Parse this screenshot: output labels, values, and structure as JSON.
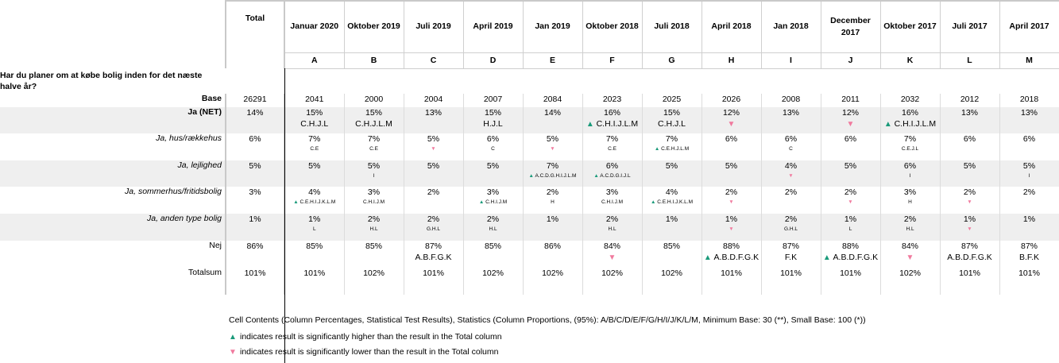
{
  "question": "Har du planer om at købe bolig inden for det næste halve år?",
  "total_label": "Total",
  "columns": [
    {
      "label": "Januar 2020",
      "letter": "A"
    },
    {
      "label": "Oktober 2019",
      "letter": "B"
    },
    {
      "label": "Juli 2019",
      "letter": "C"
    },
    {
      "label": "April 2019",
      "letter": "D"
    },
    {
      "label": "Jan 2019",
      "letter": "E"
    },
    {
      "label": "Oktober 2018",
      "letter": "F"
    },
    {
      "label": "Juli 2018",
      "letter": "G"
    },
    {
      "label": "April 2018",
      "letter": "H"
    },
    {
      "label": "Jan 2018",
      "letter": "I"
    },
    {
      "label": "December 2017",
      "letter": "J"
    },
    {
      "label": "Oktober 2017",
      "letter": "K"
    },
    {
      "label": "Juli 2017",
      "letter": "L"
    },
    {
      "label": "April 2017",
      "letter": "M"
    }
  ],
  "rows": [
    {
      "label": "Base",
      "style": "bold",
      "shade": false,
      "total": "26291",
      "cells": [
        {
          "v": "2041"
        },
        {
          "v": "2000"
        },
        {
          "v": "2004"
        },
        {
          "v": "2007"
        },
        {
          "v": "2084"
        },
        {
          "v": "2023"
        },
        {
          "v": "2025"
        },
        {
          "v": "2026"
        },
        {
          "v": "2008"
        },
        {
          "v": "2011"
        },
        {
          "v": "2032"
        },
        {
          "v": "2012"
        },
        {
          "v": "2018"
        }
      ]
    },
    {
      "label": "Ja (NET)",
      "style": "bold",
      "shade": true,
      "total": "14%",
      "sigsize": "lg",
      "cells": [
        {
          "v": "15%",
          "s": "C.H.J.L"
        },
        {
          "v": "15%",
          "s": "C.H.J.L.M"
        },
        {
          "v": "13%"
        },
        {
          "v": "15%",
          "s": "H.J.L"
        },
        {
          "v": "14%"
        },
        {
          "v": "16%",
          "s": "C.H.I.J.L.M",
          "t": "up"
        },
        {
          "v": "15%",
          "s": "C.H.J.L"
        },
        {
          "v": "12%",
          "t": "dn"
        },
        {
          "v": "13%"
        },
        {
          "v": "12%",
          "t": "dn"
        },
        {
          "v": "16%",
          "s": "C.H.I.J.L.M",
          "t": "up"
        },
        {
          "v": "13%"
        },
        {
          "v": "13%"
        }
      ]
    },
    {
      "label": "Ja, hus/rækkehus",
      "style": "it",
      "shade": false,
      "total": "6%",
      "sigsize": "sm",
      "cells": [
        {
          "v": "7%",
          "s": "C.E"
        },
        {
          "v": "7%",
          "s": "C.E"
        },
        {
          "v": "5%",
          "t": "dn"
        },
        {
          "v": "6%",
          "s": "C"
        },
        {
          "v": "5%",
          "t": "dn"
        },
        {
          "v": "7%",
          "s": "C.E"
        },
        {
          "v": "7%",
          "s": "C.E.H.J.L.M",
          "t": "up"
        },
        {
          "v": "6%"
        },
        {
          "v": "6%",
          "s": "C"
        },
        {
          "v": "6%"
        },
        {
          "v": "7%",
          "s": "C.E.J.L"
        },
        {
          "v": "6%"
        },
        {
          "v": "6%"
        }
      ]
    },
    {
      "label": "Ja, lejlighed",
      "style": "it",
      "shade": true,
      "total": "5%",
      "sigsize": "sm",
      "cells": [
        {
          "v": "5%"
        },
        {
          "v": "5%",
          "s": "I"
        },
        {
          "v": "5%"
        },
        {
          "v": "5%"
        },
        {
          "v": "7%",
          "s": "A.C.D.G.H.I.J.L.M",
          "t": "up"
        },
        {
          "v": "6%",
          "s": "A.C.D.G.I.J.L",
          "t": "up"
        },
        {
          "v": "5%"
        },
        {
          "v": "5%"
        },
        {
          "v": "4%",
          "t": "dn"
        },
        {
          "v": "5%"
        },
        {
          "v": "6%",
          "s": "I"
        },
        {
          "v": "5%"
        },
        {
          "v": "5%",
          "s": "I"
        }
      ]
    },
    {
      "label": "Ja, sommerhus/fritidsbolig",
      "style": "it",
      "shade": false,
      "total": "3%",
      "sigsize": "sm",
      "cells": [
        {
          "v": "4%",
          "s": "C.E.H.I.J.K.L.M",
          "t": "up"
        },
        {
          "v": "3%",
          "s": "C.H.I.J.M"
        },
        {
          "v": "2%"
        },
        {
          "v": "3%",
          "s": "C.H.I.J.M",
          "t": "up"
        },
        {
          "v": "2%",
          "s": "H"
        },
        {
          "v": "3%",
          "s": "C.H.I.J.M"
        },
        {
          "v": "4%",
          "s": "C.E.H.I.J.K.L.M",
          "t": "up"
        },
        {
          "v": "2%",
          "t": "dn"
        },
        {
          "v": "2%"
        },
        {
          "v": "2%",
          "t": "dn"
        },
        {
          "v": "3%",
          "s": "H"
        },
        {
          "v": "2%",
          "t": "dn"
        },
        {
          "v": "2%"
        }
      ]
    },
    {
      "label": "Ja, anden type bolig",
      "style": "it",
      "shade": true,
      "total": "1%",
      "sigsize": "sm",
      "cells": [
        {
          "v": "1%",
          "s": "L"
        },
        {
          "v": "2%",
          "s": "H.L"
        },
        {
          "v": "2%",
          "s": "G.H.L"
        },
        {
          "v": "2%",
          "s": "H.L"
        },
        {
          "v": "1%"
        },
        {
          "v": "2%",
          "s": "H.L"
        },
        {
          "v": "1%"
        },
        {
          "v": "1%",
          "t": "dn"
        },
        {
          "v": "2%",
          "s": "G.H.L"
        },
        {
          "v": "1%",
          "s": "L"
        },
        {
          "v": "2%",
          "s": "H.L"
        },
        {
          "v": "1%",
          "t": "dn"
        },
        {
          "v": "1%"
        }
      ]
    },
    {
      "label": "Nej",
      "style": "",
      "shade": false,
      "total": "86%",
      "sigsize": "lg",
      "cells": [
        {
          "v": "85%"
        },
        {
          "v": "85%"
        },
        {
          "v": "87%",
          "s": "A.B.F.G.K"
        },
        {
          "v": "85%"
        },
        {
          "v": "86%"
        },
        {
          "v": "84%",
          "t": "dn"
        },
        {
          "v": "85%"
        },
        {
          "v": "88%",
          "s": "A.B.D.F.G.K",
          "t": "up"
        },
        {
          "v": "87%",
          "s": "F.K"
        },
        {
          "v": "88%",
          "s": "A.B.D.F.G.K",
          "t": "up"
        },
        {
          "v": "84%",
          "t": "dn"
        },
        {
          "v": "87%",
          "s": "A.B.D.F.G.K"
        },
        {
          "v": "87%",
          "s": "B.F.K"
        }
      ]
    },
    {
      "label": "Totalsum",
      "style": "",
      "shade": false,
      "total": "101%",
      "cells": [
        {
          "v": "101%"
        },
        {
          "v": "102%"
        },
        {
          "v": "101%"
        },
        {
          "v": "102%"
        },
        {
          "v": "102%"
        },
        {
          "v": "102%"
        },
        {
          "v": "102%"
        },
        {
          "v": "101%"
        },
        {
          "v": "101%"
        },
        {
          "v": "101%"
        },
        {
          "v": "102%"
        },
        {
          "v": "101%"
        },
        {
          "v": "101%"
        }
      ]
    }
  ],
  "footer": {
    "cell_contents": "Cell Contents (Column Percentages, Statistical Test Results), Statistics (Column Proportions, (95%): A/B/C/D/E/F/G/H/I/J/K/L/M, Minimum Base: 30 (**), Small Base: 100 (*))",
    "legend_up": "indicates result is significantly higher than the result in the Total column",
    "legend_down": "indicates result is significantly lower than the result in the Total column"
  },
  "colors": {
    "up": "#1a9a7a",
    "down": "#f07a9e",
    "shade": "#efefef"
  }
}
